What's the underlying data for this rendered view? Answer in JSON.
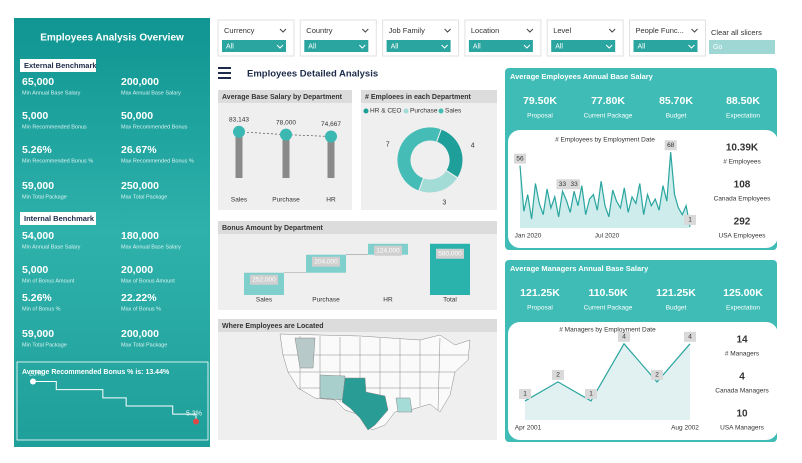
{
  "left_panel": {
    "title": "Employees Analysis Overview",
    "external_benchmark": {
      "heading": "External Benchmark",
      "metrics": [
        {
          "value": "65,000",
          "label": "Min Annual Base Salary"
        },
        {
          "value": "200,000",
          "label": "Max Annual Base Salary"
        },
        {
          "value": "5,000",
          "label": "Min Recommended Bonus"
        },
        {
          "value": "50,000",
          "label": "Max Recommended Bonus"
        },
        {
          "value": "5.26%",
          "label": "Min Recommended Bonus %"
        },
        {
          "value": "26.67%",
          "label": "Max Recommended Bonus %"
        },
        {
          "value": "59,000",
          "label": "Min Total Package"
        },
        {
          "value": "250,000",
          "label": "Max Total Package"
        }
      ]
    },
    "internal_benchmark": {
      "heading": "Internal Benchmark",
      "metrics": [
        {
          "value": "54,000",
          "label": "Min Annual Base Salary"
        },
        {
          "value": "180,000",
          "label": "Max Annual Base Salary"
        },
        {
          "value": "5,000",
          "label": "Min of Bonus Amount"
        },
        {
          "value": "20,000",
          "label": "Max of Bonus Amount"
        },
        {
          "value": "5.26%",
          "label": "Min of Bonus %"
        },
        {
          "value": "22.22%",
          "label": "Max of Bonus %"
        },
        {
          "value": "59,000",
          "label": "Min Total Package"
        },
        {
          "value": "200,000",
          "label": "Max Total Package"
        }
      ]
    },
    "bonus_trend": {
      "type": "line",
      "title": "Average Recommended Bonus % is: 13.44%",
      "values": [
        20,
        17,
        17,
        14,
        11,
        11,
        8,
        5.3
      ],
      "value_labels": [
        "20%",
        null,
        null,
        null,
        null,
        null,
        null,
        "5.3%"
      ],
      "ylim": [
        0,
        22
      ]
    }
  },
  "slicers": [
    {
      "label": "Currency",
      "value": "All"
    },
    {
      "label": "Country",
      "value": "All"
    },
    {
      "label": "Job Family",
      "value": "All"
    },
    {
      "label": "Location",
      "value": "All"
    },
    {
      "label": "Level",
      "value": "All"
    },
    {
      "label": "People Func...",
      "value": "All"
    }
  ],
  "clear_slicers": {
    "label": "Clear all slicers",
    "button": "Go"
  },
  "header": {
    "title": "Employees Detailed Analysis"
  },
  "salary_by_department": {
    "type": "lollipop",
    "title": "Average Base Salary by Department",
    "categories": [
      "Sales",
      "Purchase",
      "HR"
    ],
    "values": [
      83143,
      78000,
      74667
    ],
    "value_labels": [
      "83,143",
      "78,000",
      "74,667"
    ],
    "ylim": [
      0,
      90000
    ],
    "color": "#3cb8b2"
  },
  "employees_by_department": {
    "type": "donut",
    "title": "# Emploees in each Department",
    "categories": [
      "HR & CEO",
      "Purchase",
      "Sales"
    ],
    "values": [
      4,
      3,
      7
    ],
    "colors": [
      "#1f9f99",
      "#a3dbd7",
      "#45bdb6"
    ]
  },
  "bonus_by_department": {
    "type": "waterfall",
    "title": "Bonus Amount by Department",
    "categories": [
      "Sales",
      "Purchase",
      "HR"
    ],
    "values": [
      252000,
      204000,
      124000
    ],
    "value_labels": [
      "252,000",
      "204,000",
      "124,000"
    ],
    "total": {
      "label": "Total",
      "value": 580000,
      "value_label": "580,000"
    },
    "ylim": [
      0,
      600000
    ]
  },
  "location_map": {
    "title": "Where Employees are Located"
  },
  "employees_salary_card": {
    "title": "Average Employees Annual Base Salary",
    "kpis": [
      {
        "value": "79.50K",
        "label": "Proposal"
      },
      {
        "value": "77.80K",
        "label": "Current Package"
      },
      {
        "value": "85.70K",
        "label": "Budget"
      },
      {
        "value": "88.50K",
        "label": "Expectation"
      }
    ],
    "chart": {
      "type": "line",
      "title": "# Employees by Employment Date",
      "values": [
        56,
        15,
        30,
        8,
        40,
        22,
        12,
        35,
        18,
        28,
        10,
        33,
        25,
        14,
        33,
        20,
        38,
        12,
        26,
        30,
        16,
        42,
        20,
        10,
        34,
        24,
        18,
        36,
        14,
        28,
        22,
        40,
        12,
        30,
        20,
        26,
        16,
        38,
        24,
        68,
        30,
        18,
        12,
        20,
        1
      ],
      "value_labels": [
        "56",
        null,
        null,
        null,
        null,
        null,
        null,
        null,
        null,
        null,
        null,
        "33",
        null,
        null,
        "33",
        null,
        null,
        null,
        null,
        null,
        null,
        null,
        null,
        null,
        null,
        null,
        null,
        null,
        null,
        null,
        null,
        null,
        null,
        null,
        null,
        null,
        null,
        null,
        null,
        "68",
        null,
        null,
        null,
        null,
        "1"
      ],
      "x_labels": [
        "Jan 2020",
        "Jul 2020"
      ],
      "ylim": [
        0,
        70
      ]
    },
    "stats": [
      {
        "value": "10.39K",
        "label": "# Employees"
      },
      {
        "value": "108",
        "label": "Canada Employees"
      },
      {
        "value": "292",
        "label": "USA Employees"
      }
    ]
  },
  "managers_salary_card": {
    "title": "Average Managers Annual Base Salary",
    "kpis": [
      {
        "value": "121.25K",
        "label": "Proposal"
      },
      {
        "value": "110.50K",
        "label": "Current Package"
      },
      {
        "value": "121.25K",
        "label": "Budget"
      },
      {
        "value": "125.00K",
        "label": "Expectation"
      }
    ],
    "chart": {
      "type": "line",
      "title": "# Managers by Employment Date",
      "values": [
        1,
        2,
        1,
        4,
        2,
        4
      ],
      "value_labels": [
        "1",
        "2",
        "1",
        "4",
        "2",
        "4"
      ],
      "x_labels": [
        "Apr 2001",
        "Aug 2002"
      ],
      "ylim": [
        0,
        4.2
      ]
    },
    "stats": [
      {
        "value": "14",
        "label": "# Managers"
      },
      {
        "value": "4",
        "label": "Canada Managers"
      },
      {
        "value": "10",
        "label": "USA Managers"
      }
    ]
  }
}
